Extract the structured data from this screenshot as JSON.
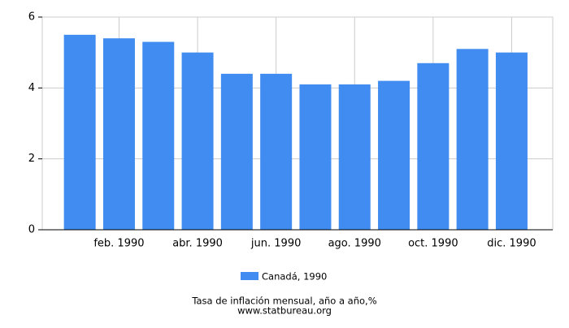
{
  "chart_data": {
    "type": "bar",
    "categories": [
      null,
      "feb. 1990",
      null,
      "abr. 1990",
      null,
      "jun. 1990",
      null,
      "ago. 1990",
      null,
      "oct. 1990",
      null,
      "dic. 1990"
    ],
    "series": [
      {
        "name": "Canadá, 1990",
        "color": "#418cf0",
        "values": [
          5.5,
          5.4,
          5.3,
          5.0,
          4.4,
          4.4,
          4.1,
          4.1,
          4.2,
          4.7,
          5.1,
          5.0
        ]
      }
    ],
    "ylim": [
      0,
      6
    ],
    "yticks": [
      0,
      2,
      4,
      6
    ],
    "grid": true,
    "xlabel": "Tasa de inflación mensual, año a año,%",
    "source": "www.statbureau.org"
  }
}
